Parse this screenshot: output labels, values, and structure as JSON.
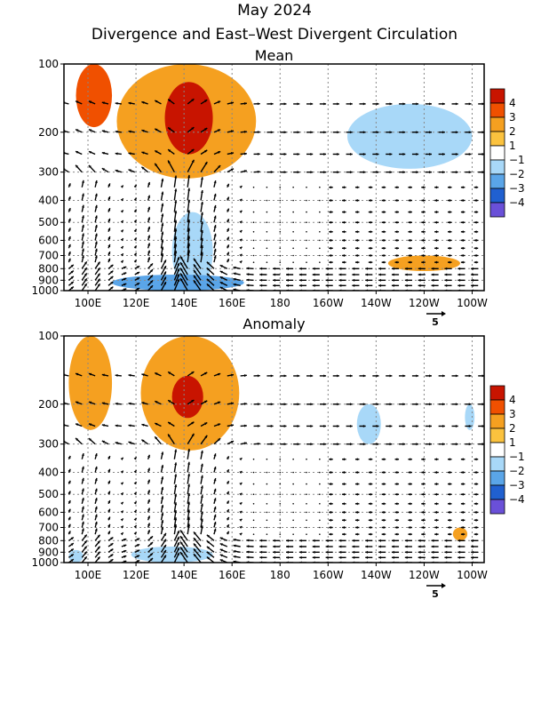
{
  "title": "May 2024",
  "subtitle": "Divergence and East–West Divergent Circulation",
  "chart_data": [
    {
      "type": "heatmap",
      "panel": "Mean",
      "title": "Mean",
      "x_ticks": [
        "100E",
        "120E",
        "140E",
        "160E",
        "180",
        "160W",
        "140W",
        "120W",
        "100W"
      ],
      "y_ticks": [
        "100",
        "200",
        "300",
        "400",
        "500",
        "600",
        "700",
        "800",
        "900",
        "1000"
      ],
      "y_scale": "log",
      "y_range": [
        1000,
        100
      ],
      "gridlines": "dotted",
      "vector_reference": "5",
      "colorbar": {
        "levels": [
          "4",
          "3",
          "2",
          "1",
          "−1",
          "−2",
          "−3",
          "−4"
        ],
        "colors": [
          "#c81400",
          "#f05000",
          "#f5a020",
          "#fbc23e",
          "#ffffff",
          "#a8d8f8",
          "#5aa5e8",
          "#2060d0",
          "#6a50d8"
        ]
      },
      "regions": [
        {
          "sign": "positive",
          "level": 3,
          "x": [
            95,
            110
          ],
          "y": [
            100,
            190
          ]
        },
        {
          "sign": "positive",
          "level": 4,
          "x": [
            132,
            152
          ],
          "y": [
            120,
            250
          ]
        },
        {
          "sign": "positive",
          "level": 2,
          "x": [
            112,
            170
          ],
          "y": [
            100,
            320
          ]
        },
        {
          "sign": "positive",
          "level": 2,
          "x": [
            225,
            255
          ],
          "y": [
            700,
            820
          ]
        },
        {
          "sign": "negative",
          "level": 2,
          "x": [
            208,
            260
          ],
          "y": [
            150,
            290
          ]
        },
        {
          "sign": "negative",
          "level": 2,
          "x": [
            135,
            152
          ],
          "y": [
            450,
            1000
          ]
        },
        {
          "sign": "negative",
          "level": 3,
          "x": [
            110,
            165
          ],
          "y": [
            850,
            1000
          ]
        }
      ]
    },
    {
      "type": "heatmap",
      "panel": "Anomaly",
      "title": "Anomaly",
      "x_ticks": [
        "100E",
        "120E",
        "140E",
        "160E",
        "180",
        "160W",
        "140W",
        "120W",
        "100W"
      ],
      "y_ticks": [
        "100",
        "200",
        "300",
        "400",
        "500",
        "600",
        "700",
        "800",
        "900",
        "1000"
      ],
      "y_scale": "log",
      "y_range": [
        1000,
        100
      ],
      "gridlines": "dotted",
      "vector_reference": "5",
      "colorbar": {
        "levels": [
          "4",
          "3",
          "2",
          "1",
          "−1",
          "−2",
          "−3",
          "−4"
        ],
        "colors": [
          "#c81400",
          "#f05000",
          "#f5a020",
          "#fbc23e",
          "#ffffff",
          "#a8d8f8",
          "#5aa5e8",
          "#2060d0",
          "#6a50d8"
        ]
      },
      "regions": [
        {
          "sign": "positive",
          "level": 4,
          "x": [
            135,
            148
          ],
          "y": [
            150,
            230
          ]
        },
        {
          "sign": "positive",
          "level": 2,
          "x": [
            122,
            163
          ],
          "y": [
            100,
            320
          ]
        },
        {
          "sign": "positive",
          "level": 2,
          "x": [
            92,
            110
          ],
          "y": [
            100,
            260
          ]
        },
        {
          "sign": "positive",
          "level": 2,
          "x": [
            252,
            258
          ],
          "y": [
            700,
            800
          ]
        },
        {
          "sign": "negative",
          "level": 2,
          "x": [
            212,
            222
          ],
          "y": [
            200,
            300
          ]
        },
        {
          "sign": "negative",
          "level": 2,
          "x": [
            118,
            152
          ],
          "y": [
            850,
            1000
          ]
        },
        {
          "sign": "negative",
          "level": 2,
          "x": [
            92,
            98
          ],
          "y": [
            880,
            1000
          ]
        },
        {
          "sign": "negative",
          "level": 2,
          "x": [
            257,
            261
          ],
          "y": [
            200,
            260
          ]
        }
      ]
    }
  ]
}
